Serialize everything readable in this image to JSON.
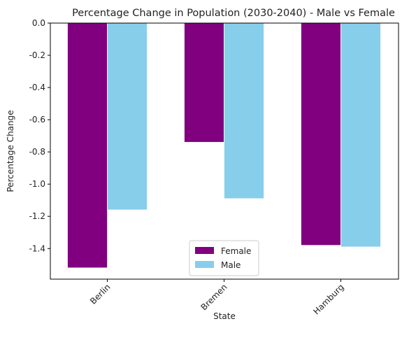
{
  "chart_data": {
    "type": "bar",
    "title": "Percentage Change in Population (2030-2040) - Male vs Female",
    "xlabel": "State",
    "ylabel": "Percentage Change",
    "categories": [
      "Berlin",
      "Bremen",
      "Hamburg"
    ],
    "series": [
      {
        "name": "Female",
        "color": "#800080",
        "values": [
          -1.52,
          -0.74,
          -1.38
        ]
      },
      {
        "name": "Male",
        "color": "#87CEEB",
        "values": [
          -1.16,
          -1.09,
          -1.39
        ]
      }
    ],
    "ylim": [
      -1.59,
      0.0
    ],
    "yticks": [
      "0.0",
      "-0.2",
      "-0.4",
      "-0.6",
      "-0.8",
      "-1.0",
      "-1.2",
      "-1.4"
    ],
    "ytick_values": [
      0.0,
      -0.2,
      -0.4,
      -0.6,
      -0.8,
      -1.0,
      -1.2,
      -1.4
    ],
    "xtick_rotation": 45,
    "grid": false,
    "legend_position": "lower-center"
  }
}
